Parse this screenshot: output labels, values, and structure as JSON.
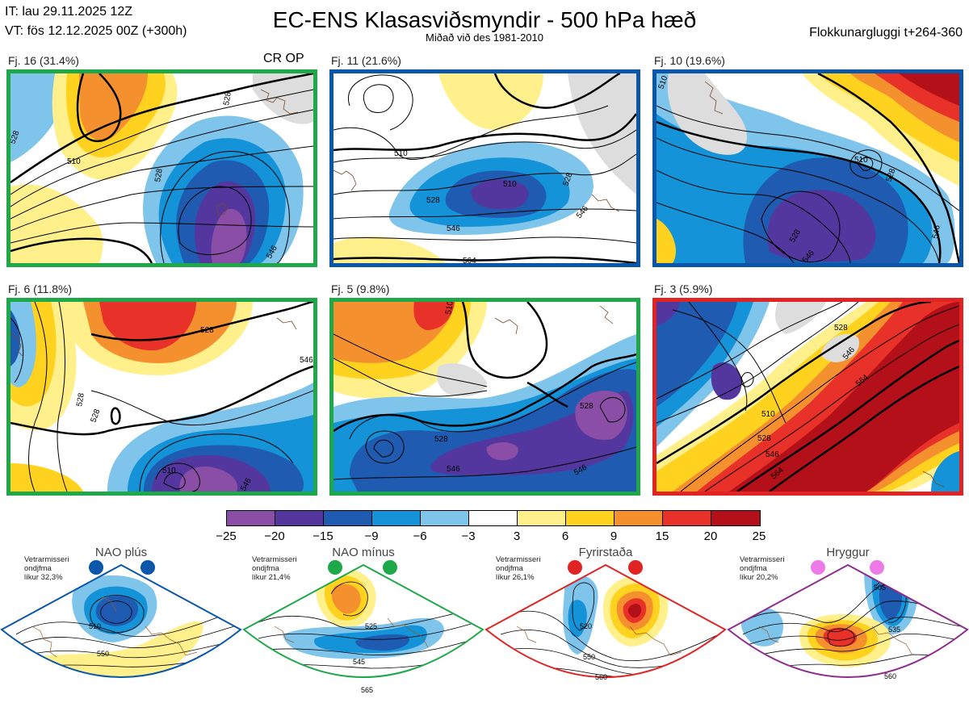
{
  "header": {
    "it_line": "IT: lau 29.11.2025 12Z",
    "vt_line": "VT: fös 12.12.2025 00Z  (+300h)",
    "title": "EC-ENS Klasasviðsmyndir - 500 hPa hæð",
    "subtitle": "Miðað við des 1981-2010",
    "window": "Flokkunargluggi t+264-360"
  },
  "panels": [
    {
      "label": "Fj. 16 (31.4%)",
      "extra": "CR OP",
      "border": "#1fa84a",
      "contour_labels": [
        "510",
        "528",
        "528",
        "546",
        "528"
      ]
    },
    {
      "label": "Fj. 11 (21.6%)",
      "extra": "",
      "border": "#0a56a8",
      "contour_labels": [
        "510",
        "510",
        "528",
        "546",
        "564",
        "528",
        "546"
      ]
    },
    {
      "label": "Fj. 10 (19.6%)",
      "extra": "",
      "border": "#0a56a8",
      "contour_labels": [
        "510",
        "528",
        "528",
        "546",
        "546",
        "510"
      ]
    },
    {
      "label": "Fj. 6 (11.8%)",
      "extra": "",
      "border": "#1fa84a",
      "contour_labels": [
        "510",
        "528",
        "528",
        "528",
        "546",
        "546"
      ]
    },
    {
      "label": "Fj. 5 (9.8%)",
      "extra": "",
      "border": "#1fa84a",
      "contour_labels": [
        "528",
        "528",
        "546",
        "546",
        "510"
      ]
    },
    {
      "label": "Fj. 3 (5.9%)",
      "extra": "",
      "border": "#e02424",
      "contour_labels": [
        "510",
        "528",
        "528",
        "546",
        "564",
        "546",
        "564"
      ]
    }
  ],
  "colorbar": {
    "colors": [
      "#8b4ea6",
      "#53379f",
      "#1f5bb0",
      "#1493d8",
      "#7fc4ea",
      "#ffffff",
      "#fff08c",
      "#ffd21f",
      "#f5902e",
      "#e83128",
      "#b31019"
    ],
    "ticks": [
      "−25",
      "−20",
      "−15",
      "−9",
      "−6",
      "−3",
      "3",
      "6",
      "9",
      "15",
      "20",
      "25"
    ]
  },
  "regimes": [
    {
      "name": "NAO plús",
      "line1": "Vetrarmisseri",
      "line2": "ondjfma",
      "line3": "líkur 32,3%",
      "color": "#0a56a8",
      "labels": [
        "510",
        "550"
      ]
    },
    {
      "name": "NAO mínus",
      "line1": "Vetrarmisseri",
      "line2": "ondjfma",
      "line3": "líkur 21,4%",
      "color": "#1fa84a",
      "labels": [
        "525",
        "545",
        "565"
      ]
    },
    {
      "name": "Fyrirstaða",
      "line1": "Vetrarmisseri",
      "line2": "ondjfma",
      "line3": "líkur 26,1%",
      "color": "#e02424",
      "labels": [
        "520",
        "550",
        "560"
      ]
    },
    {
      "name": "Hryggur",
      "line1": "Vetrarmisseri",
      "line2": "ondjfma",
      "line3": "líkur 20,2%",
      "color": "#8e2d8e",
      "dot": "#ee7ae8",
      "labels": [
        "505",
        "535",
        "560"
      ]
    }
  ]
}
